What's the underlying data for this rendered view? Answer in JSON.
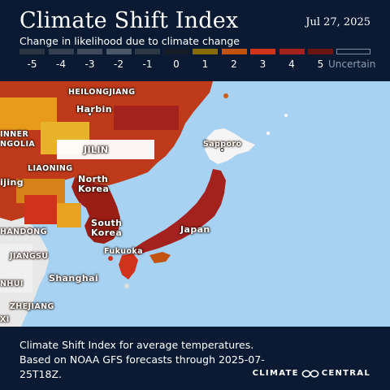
{
  "header": {
    "title": "Climate Shift Index",
    "date": "Jul 27, 2025",
    "subtitle": "Change in likelihood due to climate change"
  },
  "legend": {
    "ticks": [
      "-5",
      "-4",
      "-3",
      "-2",
      "-1",
      "0",
      "1",
      "2",
      "3",
      "4",
      "5"
    ],
    "colors": [
      "#2a3442",
      "#34404f",
      "#3f4b5b",
      "#4a5767",
      "#2e3947",
      "#161c26",
      "#876b09",
      "#c2530f",
      "#cf3319",
      "#a3221d",
      "#6a1512"
    ],
    "uncertain_label": "Uncertain"
  },
  "map": {
    "labels": {
      "heilongjiang": "HEILONGJIANG",
      "harbin": "Harbin",
      "inner": "INNER",
      "ngolia": "NGOLIA",
      "jilin": "JILIN",
      "sapporo": "Sapporo",
      "liaoning": "LIAONING",
      "north_korea_1": "North",
      "north_korea_2": "Korea",
      "ijing": "ijing",
      "south_korea_1": "South",
      "south_korea_2": "Korea",
      "japan": "Japan",
      "handong": "HANDONG",
      "fukuoka": "Fukuoka",
      "jiangsu": "JIANGSU",
      "shanghai": "Shanghai",
      "nhui": "NHUI",
      "zhejiang": "ZHEJIANG",
      "xi": "XI"
    }
  },
  "footer": {
    "caption": "Climate Shift Index for average temperatures. Based on NOAA GFS forecasts through 2025-07-25T18Z.",
    "brand_left": "CLIMATE",
    "brand_right": "CENTRAL"
  }
}
